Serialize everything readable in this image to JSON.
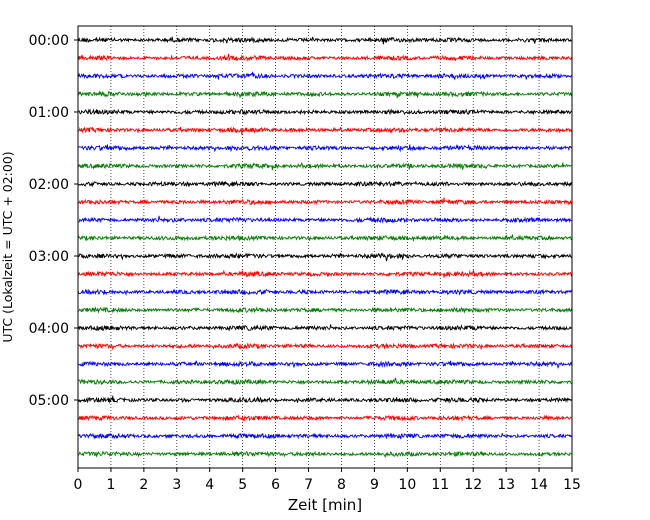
{
  "chart_data": {
    "type": "line",
    "title": "",
    "xlabel": "Zeit  [min]",
    "ylabel": "UTC (Lokalzeit = UTC + 02:00)",
    "xlim": [
      0,
      15
    ],
    "x_ticks": [
      "0",
      "1",
      "2",
      "3",
      "4",
      "5",
      "6",
      "7",
      "8",
      "9",
      "10",
      "11",
      "12",
      "13",
      "14",
      "15"
    ],
    "y_tick_labels": [
      "00:00",
      "01:00",
      "02:00",
      "03:00",
      "04:00",
      "05:00"
    ],
    "grid": "vertical dotted lines at each minute",
    "trace_count": 24,
    "trace_interval_min": 15,
    "trace_colors": [
      "#000000",
      "#ff0000",
      "#0000ff",
      "#008000"
    ]
  }
}
